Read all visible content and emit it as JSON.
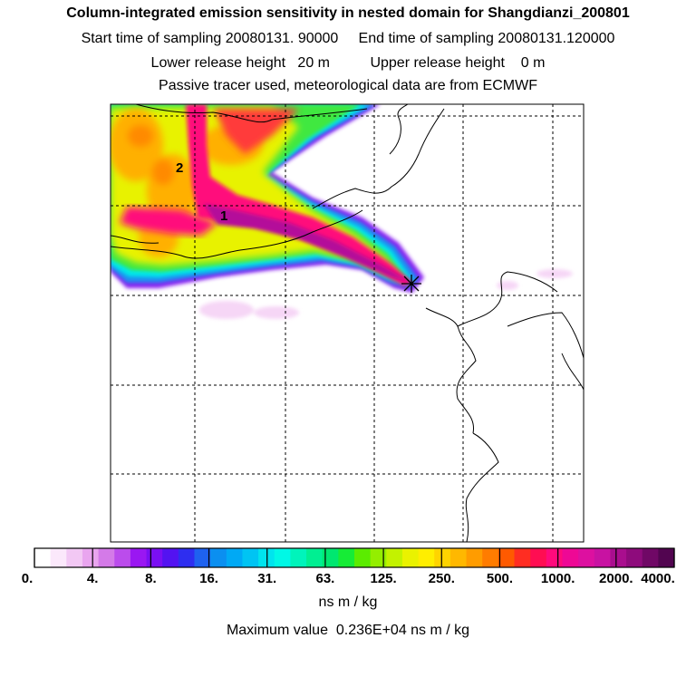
{
  "header": {
    "title": "Column-integrated emission sensitivity in nested domain for Shangdianzi_200801",
    "start": "Start time of sampling 20080131. 90000",
    "end": "End time of sampling 20080131.120000",
    "lower": "Lower release height   20 m",
    "upper": "Upper release height    0 m",
    "note": "Passive tracer used, meteorological data are from ECMWF"
  },
  "map": {
    "labels": [
      "1",
      "2"
    ],
    "release_marker": "star-marker"
  },
  "colorbar": {
    "ticks": [
      "0.",
      "4.",
      "8.",
      "16.",
      "31.",
      "63.",
      "125.",
      "250.",
      "500.",
      "1000.",
      "2000.",
      "4000."
    ],
    "colors": [
      "#ffffff",
      "#fbe8fb",
      "#f2c8f4",
      "#e9a5ef",
      "#d47ae8",
      "#bb4cec",
      "#9a17f2",
      "#7a0ff2",
      "#5313f1",
      "#2e2ef0",
      "#1e62f0",
      "#0b8ff0",
      "#00a9f5",
      "#00c4f3",
      "#00e4ee",
      "#00f8e6",
      "#00f4bb",
      "#00ef92",
      "#00e770",
      "#16ec36",
      "#5bec00",
      "#94ee00",
      "#c3f200",
      "#eaf200",
      "#ffee00",
      "#ffd400",
      "#ffb800",
      "#ff9c00",
      "#ff7c00",
      "#ff5a00",
      "#ff2d22",
      "#ff0d52",
      "#ff0a7c",
      "#ee0895",
      "#dd10a0",
      "#c812a2",
      "#a90e8e",
      "#8e0b7c",
      "#700866",
      "#520550"
    ],
    "units": "ns m / kg",
    "max_label": "Maximum value  0.236E+04 ns m / kg"
  }
}
